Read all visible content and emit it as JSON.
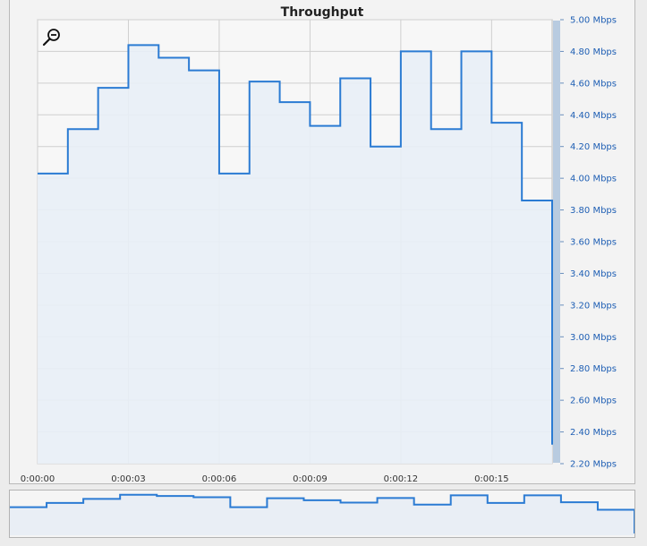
{
  "chart_data": {
    "type": "line",
    "step": true,
    "title": "Throughput",
    "xlabel": "",
    "ylabel": "",
    "x_ticks": [
      "0:00:00",
      "0:00:03",
      "0:00:06",
      "0:00:09",
      "0:00:12",
      "0:00:15"
    ],
    "y_ticks": [
      "5.00 Mbps",
      "4.80 Mbps",
      "4.60 Mbps",
      "4.40 Mbps",
      "4.20 Mbps",
      "4.00 Mbps",
      "3.80 Mbps",
      "3.60 Mbps",
      "3.40 Mbps",
      "3.20 Mbps",
      "3.00 Mbps",
      "2.80 Mbps",
      "2.60 Mbps",
      "2.40 Mbps",
      "2.20 Mbps"
    ],
    "xlim": [
      0,
      17
    ],
    "ylim": [
      2.2,
      5.0
    ],
    "grid": true,
    "series": [
      {
        "x": [
          0,
          1,
          2,
          3,
          4,
          5,
          6,
          7,
          8,
          9,
          10,
          11,
          12,
          13,
          14,
          15,
          16,
          17
        ],
        "values": [
          4.03,
          4.31,
          4.57,
          4.84,
          4.76,
          4.68,
          4.03,
          4.61,
          4.48,
          4.33,
          4.63,
          4.2,
          4.8,
          4.31,
          4.8,
          4.35,
          3.86,
          2.32
        ]
      }
    ],
    "colors": {
      "line": "#2b7bd3",
      "fill": "#e8eef6",
      "axis_text": "#1f5fb4"
    }
  },
  "toolbar": {
    "zoom_icon": "zoom-out-icon"
  }
}
